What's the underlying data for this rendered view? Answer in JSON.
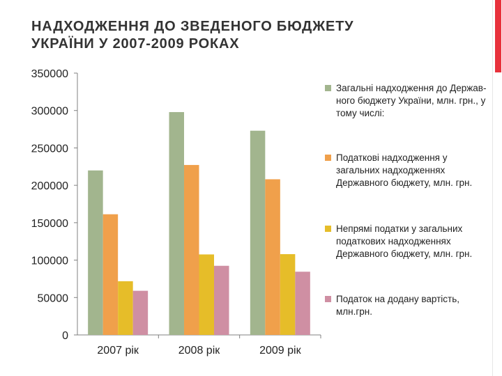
{
  "page": {
    "title_line1": "НАДХОДЖЕННЯ ДО ЗВЕДЕНОГО БЮДЖЕТУ",
    "title_line2": "УКРАЇНИ У 2007-2009 РОКАХ"
  },
  "colors": {
    "accent_bar": "#e8323c",
    "axis": "#808080"
  },
  "chart_data": {
    "type": "bar",
    "title": "НАДХОДЖЕННЯ ДО ЗВЕДЕНОГО БЮДЖЕТУ УКРАЇНИ У 2007-2009 РОКАХ",
    "categories": [
      "2007 рік",
      "2008 рік",
      "2009 рік"
    ],
    "ylim": [
      0,
      350000
    ],
    "yticks": [
      0,
      50000,
      100000,
      150000,
      200000,
      250000,
      300000,
      350000
    ],
    "ytick_labels": [
      "0",
      "50000",
      "100000",
      "150000",
      "200000",
      "250000",
      "300000",
      "350000"
    ],
    "grid": false,
    "legend_position": "right",
    "series": [
      {
        "name": "Загальні надходження до Держав-ного бюджету України, млн. грн., у тому числі:",
        "color": "#a2b58e",
        "values": [
          219900,
          297900,
          273000
        ]
      },
      {
        "name": "Податкові надходження у загальних надходженнях Державного бюджету, млн. грн.",
        "color": "#f0a04b",
        "values": [
          161300,
          227200,
          208100
        ]
      },
      {
        "name": "Непрямі податки у загальних податкових надходженнях Державного бюджету, млн. грн.",
        "color": "#e6bd29",
        "values": [
          71800,
          107600,
          108000
        ]
      },
      {
        "name": "Податок на додану вартість, млн.грн.",
        "color": "#cf8fa3",
        "values": [
          59000,
          92400,
          84500
        ]
      }
    ]
  }
}
